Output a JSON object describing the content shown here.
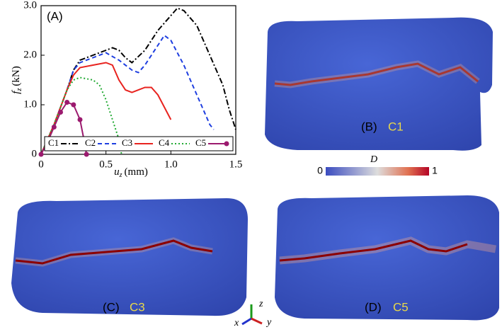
{
  "chart_data": {
    "type": "line",
    "title": "(A)",
    "xlabel": {
      "symbol": "u",
      "sub": "z",
      "unit": "(mm)"
    },
    "ylabel": {
      "symbol": "f",
      "sub": "z",
      "unit": "(kN)"
    },
    "xlim": [
      0,
      1.5
    ],
    "xticks": [
      0,
      0.5,
      {
        "value": 1,
        "label": "1.0"
      },
      1.5
    ],
    "ylim": [
      0,
      3
    ],
    "yticks": [
      0,
      {
        "value": 1,
        "label": "1.0"
      },
      {
        "value": 2,
        "label": "2.0"
      },
      {
        "value": 3,
        "label": "3.0"
      }
    ],
    "legend": "bottom",
    "series": [
      {
        "name": "C1",
        "color": "#000000",
        "style": "dashdot",
        "x": [
          0,
          0.1,
          0.2,
          0.25,
          0.3,
          0.35,
          0.4,
          0.5,
          0.55,
          0.6,
          0.65,
          0.7,
          0.8,
          0.9,
          1.0,
          1.05,
          1.1,
          1.2,
          1.3,
          1.4,
          1.45,
          1.5
        ],
        "values": [
          0,
          0.6,
          1.3,
          1.7,
          1.9,
          1.95,
          2.0,
          2.1,
          2.15,
          2.1,
          1.95,
          1.85,
          2.1,
          2.5,
          2.8,
          2.95,
          2.9,
          2.6,
          2.0,
          1.4,
          0.9,
          0.5
        ]
      },
      {
        "name": "C2",
        "color": "#1f3fe0",
        "style": "dashed",
        "x": [
          0,
          0.1,
          0.2,
          0.25,
          0.3,
          0.4,
          0.5,
          0.6,
          0.7,
          0.75,
          0.8,
          0.9,
          0.95,
          1.0,
          1.1,
          1.2,
          1.3,
          1.33
        ],
        "values": [
          0,
          0.6,
          1.3,
          1.7,
          1.85,
          1.95,
          2.05,
          1.9,
          1.7,
          1.65,
          1.8,
          2.2,
          2.4,
          2.3,
          1.8,
          1.2,
          0.6,
          0.5
        ]
      },
      {
        "name": "C3",
        "color": "#e8231f",
        "style": "solid",
        "x": [
          0,
          0.1,
          0.2,
          0.25,
          0.3,
          0.4,
          0.5,
          0.55,
          0.6,
          0.65,
          0.7,
          0.8,
          0.85,
          0.9,
          1.0
        ],
        "values": [
          0,
          0.6,
          1.3,
          1.6,
          1.75,
          1.8,
          1.85,
          1.8,
          1.5,
          1.3,
          1.25,
          1.35,
          1.35,
          1.2,
          0.7
        ]
      },
      {
        "name": "C4",
        "color": "#22aa33",
        "style": "dotted",
        "x": [
          0,
          0.1,
          0.2,
          0.25,
          0.3,
          0.4,
          0.45,
          0.5,
          0.55,
          0.6,
          0.62
        ],
        "values": [
          0,
          0.6,
          1.3,
          1.5,
          1.55,
          1.5,
          1.4,
          1.1,
          0.7,
          0.3,
          0
        ]
      },
      {
        "name": "C5",
        "color": "#9b1a6e",
        "style": "marker",
        "x": [
          0,
          0.05,
          0.1,
          0.15,
          0.2,
          0.25,
          0.3,
          0.33,
          0.35
        ],
        "values": [
          0,
          0.25,
          0.55,
          0.85,
          1.05,
          1.0,
          0.7,
          0.3,
          0
        ]
      }
    ]
  },
  "colorbar": {
    "label": "D",
    "min": "0",
    "max": "1"
  },
  "panels": [
    {
      "label": "(B)",
      "case": "C1"
    },
    {
      "label": "(C)",
      "case": "C3"
    },
    {
      "label": "(D)",
      "case": "C5"
    }
  ],
  "axes_triad": {
    "x": "x",
    "y": "y",
    "z": "z"
  }
}
